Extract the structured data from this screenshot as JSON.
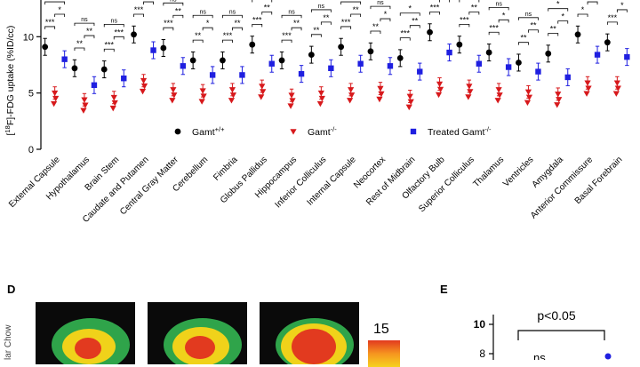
{
  "chart_data": {
    "type": "dot-plot",
    "ylabel": "[18F]-FDG uptake (%ID/cc)",
    "ylabel_parts": {
      "pre": "[",
      "sup": "18",
      "post": "F]-FDG uptake (%ID/cc)"
    },
    "ylim": [
      0,
      13.5
    ],
    "yticks": [
      0,
      5,
      10
    ],
    "tick_labels": [
      "0",
      "5",
      "10"
    ],
    "legend": [
      {
        "name": "Gamt+/+",
        "base": "Gamt",
        "sup": "+/+",
        "color": "#000000",
        "marker": "circle"
      },
      {
        "name": "Gamt-/-",
        "base": "Gamt",
        "sup": "-/-",
        "color": "#d7191c",
        "marker": "triangle-down"
      },
      {
        "name": "Treated Gamt-/-",
        "base": "Treated Gamt",
        "sup": "-/-",
        "color": "#1f1fe0",
        "marker": "square"
      }
    ],
    "categories": [
      "External Capsule",
      "Hypothalamus",
      "Brain Stem",
      "Caudate and Putamen",
      "Central Gray Matter",
      "Cerebellum",
      "Fimbria",
      "Globus Pallidus",
      "Hippocampus",
      "Inferior Colliculus",
      "Internal Capsule",
      "Neocortex",
      "Rest of Midbrain",
      "Olfactory Bulb",
      "Superior Colliculus",
      "Thalamus",
      "Ventricles",
      "Amygdala",
      "Anterior Commissure",
      "Basal Forebrain"
    ],
    "series": [
      {
        "name": "Gamt+/+",
        "values": [
          9.1,
          7.2,
          7.1,
          10.2,
          9.0,
          7.9,
          7.9,
          9.3,
          7.9,
          8.4,
          9.1,
          8.7,
          8.1,
          10.4,
          9.3,
          8.6,
          7.7,
          8.5,
          10.2,
          9.5
        ]
      },
      {
        "name": "Gamt-/-",
        "values": [
          5.0,
          4.4,
          4.6,
          6.1,
          5.3,
          5.2,
          5.3,
          5.6,
          4.8,
          5.0,
          5.3,
          5.4,
          4.7,
          5.8,
          5.6,
          5.3,
          5.1,
          4.9,
          5.9,
          5.9
        ]
      },
      {
        "name": "Treated Gamt-/-",
        "values": [
          8.0,
          5.7,
          6.3,
          8.8,
          7.4,
          6.6,
          6.6,
          7.6,
          6.7,
          7.2,
          7.6,
          7.4,
          6.9,
          8.6,
          7.6,
          7.3,
          6.9,
          6.4,
          8.4,
          8.2
        ]
      }
    ],
    "significance": [
      [
        "***",
        "*",
        "ns"
      ],
      [
        "**",
        "**",
        "ns"
      ],
      [
        "***",
        "***",
        "ns"
      ],
      [
        "***",
        "*",
        "ns"
      ],
      [
        "***",
        "**",
        "ns"
      ],
      [
        "**",
        "*",
        "ns"
      ],
      [
        "***",
        "**",
        "ns"
      ],
      [
        "***",
        "**",
        "ns"
      ],
      [
        "***",
        "**",
        "ns"
      ],
      [
        "**",
        "**",
        "ns"
      ],
      [
        "***",
        "**",
        "ns"
      ],
      [
        "**",
        "*",
        "ns"
      ],
      [
        "***",
        "**",
        "*"
      ],
      [
        "***",
        "**",
        "ns"
      ],
      [
        "***",
        "**",
        "ns"
      ],
      [
        "***",
        "*",
        "ns"
      ],
      [
        "**",
        "**",
        "ns"
      ],
      [
        "**",
        "*",
        "*"
      ],
      [
        "*",
        "*",
        "ns"
      ],
      [
        "***",
        "*",
        "*"
      ]
    ]
  },
  "panel_d": {
    "letter": "D",
    "row_label": "lar Chow",
    "scale_max": "15"
  },
  "panel_e": {
    "letter": "E",
    "ytick_top": "10",
    "ytick_mid": "8",
    "pvalue": "p<0.05",
    "ns": "ns"
  },
  "colors": {
    "wt": "#000000",
    "ko": "#d7191c",
    "treated": "#1f1fe0"
  }
}
